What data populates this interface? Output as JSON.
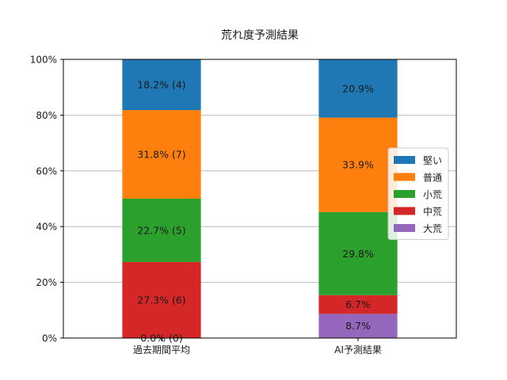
{
  "chart_data": {
    "type": "bar",
    "stacked": true,
    "title": "荒れ度予測結果",
    "xlabel": "",
    "ylabel": "",
    "ylim": [
      0,
      100
    ],
    "yticks": [
      "0%",
      "20%",
      "40%",
      "60%",
      "80%",
      "100%"
    ],
    "grid": "y",
    "legend_position": "right",
    "categories": [
      "過去期間平均",
      "AI予測結果"
    ],
    "series": [
      {
        "name": "大荒",
        "color": "#9467bd",
        "values": [
          0.0,
          8.7
        ],
        "labels": [
          "0.0% (0)",
          "8.7%"
        ]
      },
      {
        "name": "中荒",
        "color": "#d62728",
        "values": [
          27.3,
          6.7
        ],
        "labels": [
          "27.3% (6)",
          "6.7%"
        ]
      },
      {
        "name": "小荒",
        "color": "#2ca02c",
        "values": [
          22.7,
          29.8
        ],
        "labels": [
          "22.7% (5)",
          "29.8%"
        ]
      },
      {
        "name": "普通",
        "color": "#ff7f0e",
        "values": [
          31.8,
          33.9
        ],
        "labels": [
          "31.8% (7)",
          "33.9%"
        ]
      },
      {
        "name": "堅い",
        "color": "#1f77b4",
        "values": [
          18.2,
          20.9
        ],
        "labels": [
          "18.2% (4)",
          "20.9%"
        ]
      }
    ],
    "legend_order": [
      "堅い",
      "普通",
      "小荒",
      "中荒",
      "大荒"
    ]
  }
}
